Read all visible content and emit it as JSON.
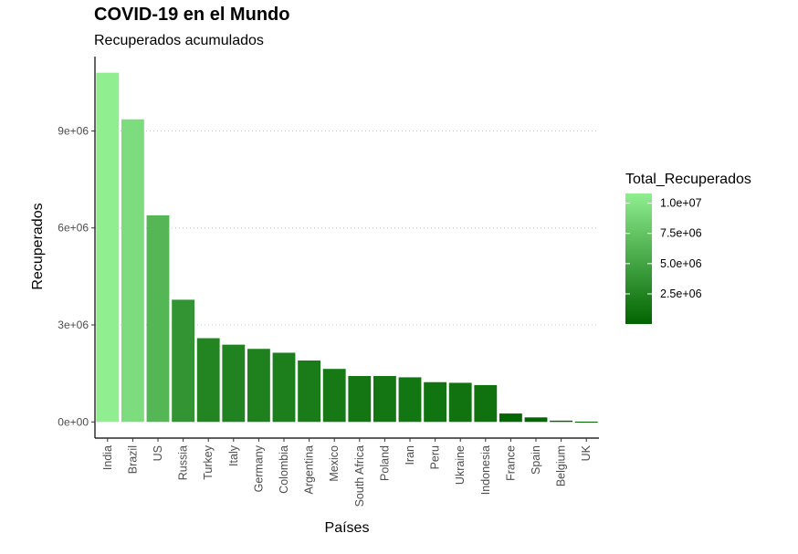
{
  "chart_data": {
    "type": "bar",
    "title": "COVID-19 en el Mundo",
    "subtitle": "Recuperados acumulados",
    "xlabel": "Países",
    "ylabel": "Recuperados",
    "categories": [
      "India",
      "Brazil",
      "US",
      "Russia",
      "Turkey",
      "Italy",
      "Germany",
      "Colombia",
      "Argentina",
      "Mexico",
      "South Africa",
      "Poland",
      "Iran",
      "Peru",
      "Ukraine",
      "Indonesia",
      "France",
      "Spain",
      "Belgium",
      "UK"
    ],
    "values": [
      10800000,
      9360000,
      6390000,
      3780000,
      2590000,
      2390000,
      2260000,
      2140000,
      1900000,
      1640000,
      1420000,
      1420000,
      1380000,
      1230000,
      1210000,
      1140000,
      260000,
      140000,
      40000,
      8000
    ],
    "ylim": [
      -500000,
      11300000
    ],
    "yticks": [
      0,
      3000000,
      6000000,
      9000000
    ],
    "ytick_labels": [
      "0e+00",
      "3e+06",
      "6e+06",
      "9e+06"
    ],
    "grid": "horizontal dotted at major ticks",
    "legend": {
      "title": "Total_Recuperados",
      "placement": "right",
      "breaks": [
        10000000,
        7500000,
        5000000,
        2500000
      ],
      "labels": [
        "1.0e+07",
        "7.5e+06",
        "5.0e+06",
        "2.5e+06"
      ],
      "color_low": "#006400",
      "color_high": "#90EE90"
    }
  }
}
